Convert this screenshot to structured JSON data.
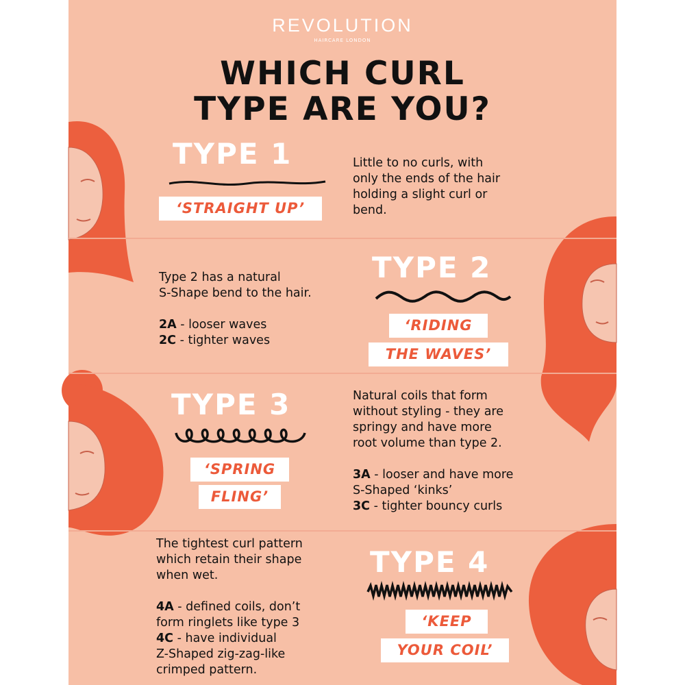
{
  "brand": {
    "name": "REVOLUTION",
    "sub": "HAIRCARE LONDON"
  },
  "title": {
    "line1": "WHICH CURL",
    "line2": "TYPE ARE YOU?"
  },
  "colors": {
    "background": "#f7bfa6",
    "accent": "#ec5a3a",
    "hair": "#ec5f3e",
    "text": "#111111"
  },
  "types": [
    {
      "heading": "TYPE 1",
      "tag": [
        "‘STRAIGHT UP’"
      ],
      "desc": [
        "Little to no curls, with",
        "only the ends of the hair",
        "holding a slight curl or",
        "bend."
      ]
    },
    {
      "heading": "TYPE 2",
      "tag": [
        "‘RIDING",
        "THE WAVES’"
      ],
      "desc": [
        "Type 2 has a natural",
        "S-Shape bend to the hair."
      ],
      "variants": [
        {
          "code": "2A",
          "text": " - looser waves"
        },
        {
          "code": "2C",
          "text": " - tighter waves"
        }
      ]
    },
    {
      "heading": "TYPE 3",
      "tag": [
        "‘SPRING",
        "FLING’"
      ],
      "desc": [
        "Natural coils that form",
        "without styling - they are",
        "springy and have more",
        "root volume than type 2."
      ],
      "variants": [
        {
          "code": "3A",
          "text": " - looser and have more"
        },
        {
          "code": "",
          "text": "S-Shaped ‘kinks’"
        },
        {
          "code": "3C",
          "text": " - tighter bouncy curls"
        }
      ]
    },
    {
      "heading": "TYPE 4",
      "tag": [
        "‘KEEP",
        "YOUR COIL’"
      ],
      "desc": [
        "The tightest curl pattern",
        "which retain their shape",
        "when wet."
      ],
      "variants": [
        {
          "code": "4A",
          "text": " - defined coils, don’t"
        },
        {
          "code": "",
          "text": "form ringlets like type 3"
        },
        {
          "code": "4C",
          "text": " - have individual"
        },
        {
          "code": "",
          "text": "Z-Shaped zig-zag-like"
        },
        {
          "code": "",
          "text": "crimped pattern."
        }
      ]
    }
  ]
}
